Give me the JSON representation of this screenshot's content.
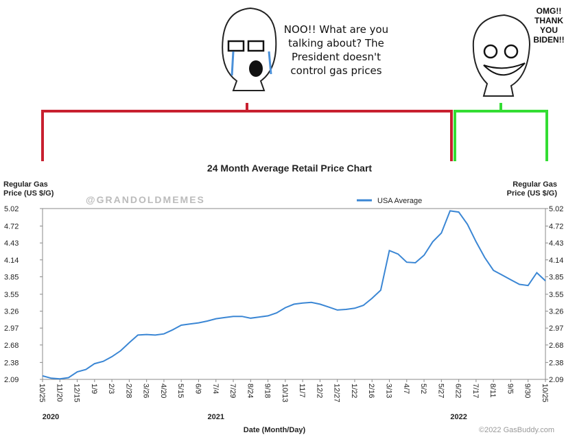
{
  "meme": {
    "left_caption": [
      "NOO!! What are you",
      "talking about? The",
      "President doesn't",
      "control gas prices"
    ],
    "right_caption": [
      "OMG!!",
      "THANK",
      "YOU",
      "BIDEN!!"
    ],
    "watermark": "@GRANDOLDMEMES"
  },
  "chart_data": {
    "type": "line",
    "title": "24 Month Average Retail Price Chart",
    "y_label": [
      "Regular Gas",
      "Price (US $/G)"
    ],
    "y2_label": [
      "Regular Gas",
      "Price (US $/G)"
    ],
    "x_label": "Date (Month/Day)",
    "x_group_labels": [
      "2020",
      "2021",
      "2022"
    ],
    "credit": "©2022 GasBuddy.com",
    "legend": "top-right",
    "grid": false,
    "categories": [
      "10/25",
      null,
      "11/20",
      null,
      "12/15",
      null,
      "1/9",
      null,
      "2/3",
      null,
      "2/28",
      null,
      "3/26",
      null,
      "4/20",
      null,
      "5/15",
      null,
      "6/9",
      null,
      "7/4",
      null,
      "7/29",
      null,
      "8/24",
      null,
      "9/18",
      null,
      "10/13",
      null,
      "11/7",
      null,
      "12/2",
      null,
      "12/27",
      null,
      "1/22",
      null,
      "2/16",
      null,
      "3/13",
      null,
      "4/7",
      null,
      "5/2",
      null,
      "5/27",
      null,
      "6/22",
      null,
      "7/17",
      null,
      "8/11",
      null,
      "9/5",
      null,
      "9/30",
      null,
      "10/25"
    ],
    "series": [
      {
        "name": "USA Average",
        "color": "#3a86d4",
        "values": [
          2.15,
          2.11,
          2.1,
          2.12,
          2.22,
          2.26,
          2.36,
          2.4,
          2.48,
          2.58,
          2.72,
          2.85,
          2.86,
          2.85,
          2.87,
          2.94,
          3.02,
          3.04,
          3.06,
          3.09,
          3.13,
          3.15,
          3.17,
          3.17,
          3.14,
          3.16,
          3.18,
          3.23,
          3.32,
          3.38,
          3.4,
          3.41,
          3.38,
          3.33,
          3.28,
          3.29,
          3.31,
          3.36,
          3.48,
          3.62,
          4.3,
          4.24,
          4.1,
          4.09,
          4.22,
          4.45,
          4.6,
          4.98,
          4.96,
          4.75,
          4.45,
          4.18,
          3.96,
          3.88,
          3.8,
          3.72,
          3.7,
          3.92,
          3.78
        ]
      }
    ],
    "ylim": [
      2.09,
      5.02
    ],
    "yticks": [
      2.09,
      2.38,
      2.68,
      2.97,
      3.26,
      3.55,
      3.85,
      4.14,
      4.43,
      4.72,
      5.02
    ],
    "y2lim": [
      2.09,
      5.02
    ],
    "y2ticks": [
      2.09,
      2.38,
      2.68,
      2.97,
      3.26,
      3.55,
      3.85,
      4.14,
      4.43,
      4.72,
      5.02
    ]
  }
}
